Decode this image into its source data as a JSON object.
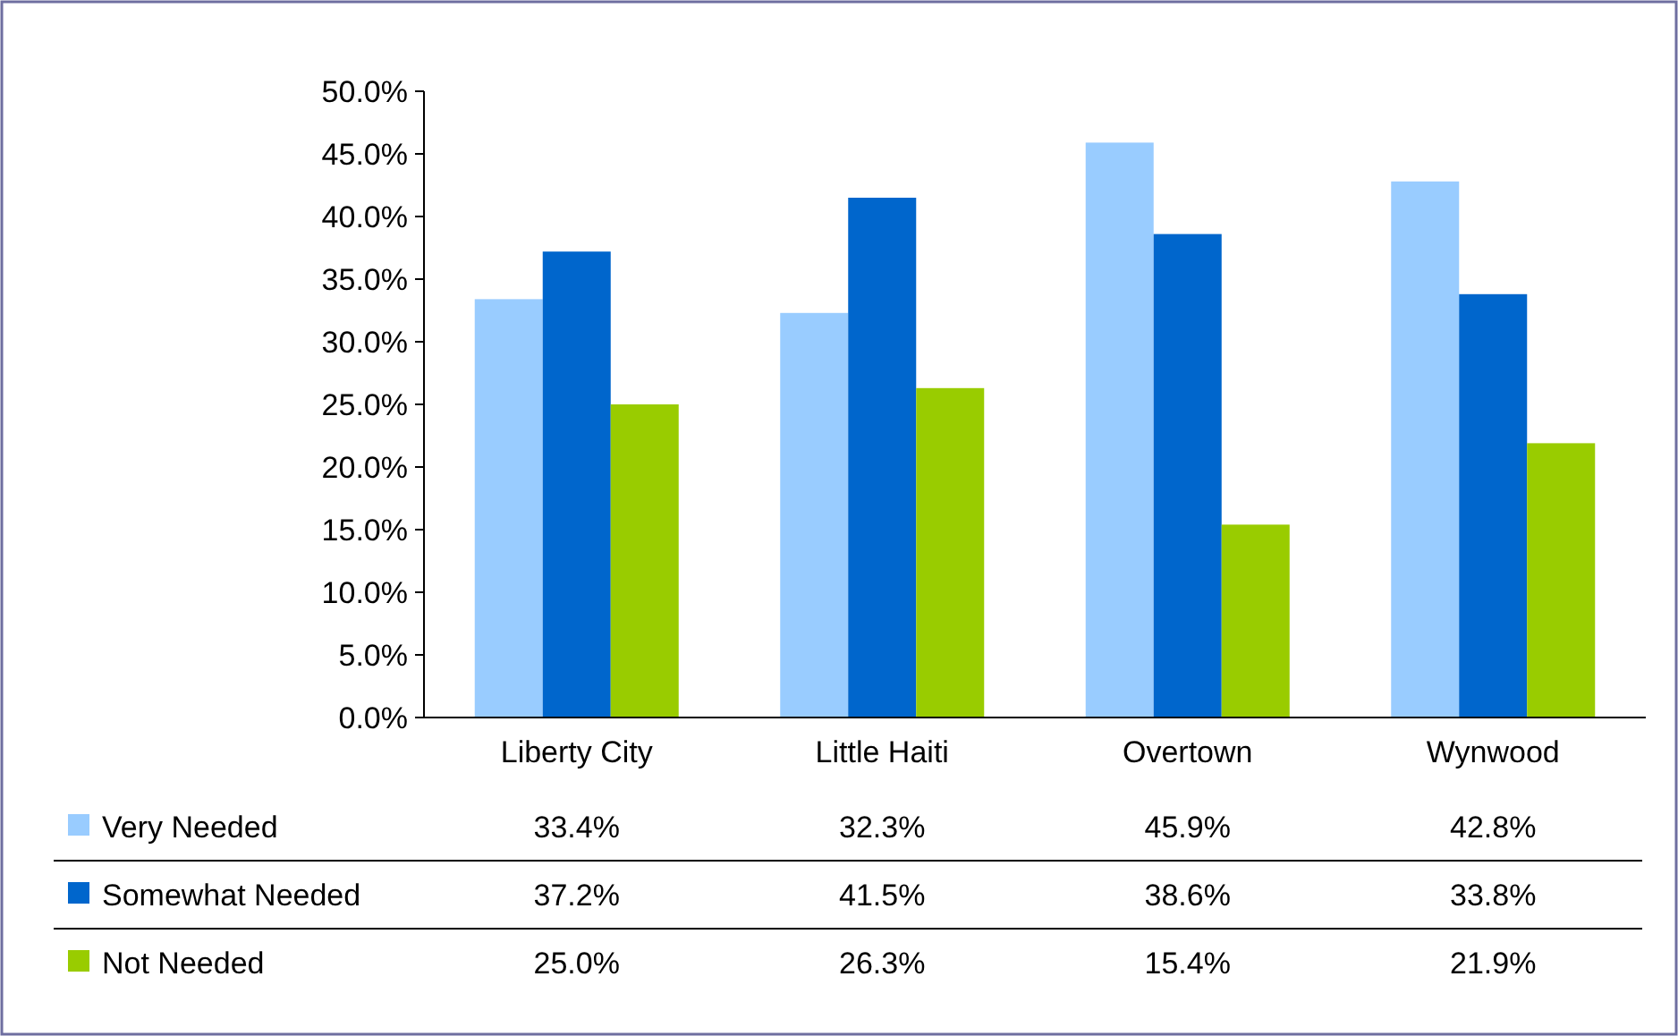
{
  "chart_data": {
    "type": "bar",
    "categories": [
      "Liberty City",
      "Little Haiti",
      "Overtown",
      "Wynwood"
    ],
    "series": [
      {
        "name": "Very Needed",
        "color": "#99ccff",
        "values": [
          33.4,
          32.3,
          45.9,
          42.8
        ],
        "value_labels": [
          "33.4%",
          "32.3%",
          "45.9%",
          "42.8%"
        ]
      },
      {
        "name": "Somewhat Needed",
        "color": "#0066cc",
        "values": [
          37.2,
          41.5,
          38.6,
          33.8
        ],
        "value_labels": [
          "37.2%",
          "41.5%",
          "38.6%",
          "33.8%"
        ]
      },
      {
        "name": "Not Needed",
        "color": "#99cc00",
        "values": [
          25.0,
          26.3,
          15.4,
          21.9
        ],
        "value_labels": [
          "25.0%",
          "26.3%",
          "15.4%",
          "21.9%"
        ]
      }
    ],
    "ylim": [
      0,
      50
    ],
    "yticks": [
      {
        "value": 0,
        "label": "0.0%"
      },
      {
        "value": 5,
        "label": "5.0%"
      },
      {
        "value": 10,
        "label": "10.0%"
      },
      {
        "value": 15,
        "label": "15.0%"
      },
      {
        "value": 20,
        "label": "20.0%"
      },
      {
        "value": 25,
        "label": "25.0%"
      },
      {
        "value": 30,
        "label": "30.0%"
      },
      {
        "value": 35,
        "label": "35.0%"
      },
      {
        "value": 40,
        "label": "40.0%"
      },
      {
        "value": 45,
        "label": "45.0%"
      },
      {
        "value": 50,
        "label": "50.0%"
      }
    ],
    "grid": false,
    "legend": "bottom"
  }
}
